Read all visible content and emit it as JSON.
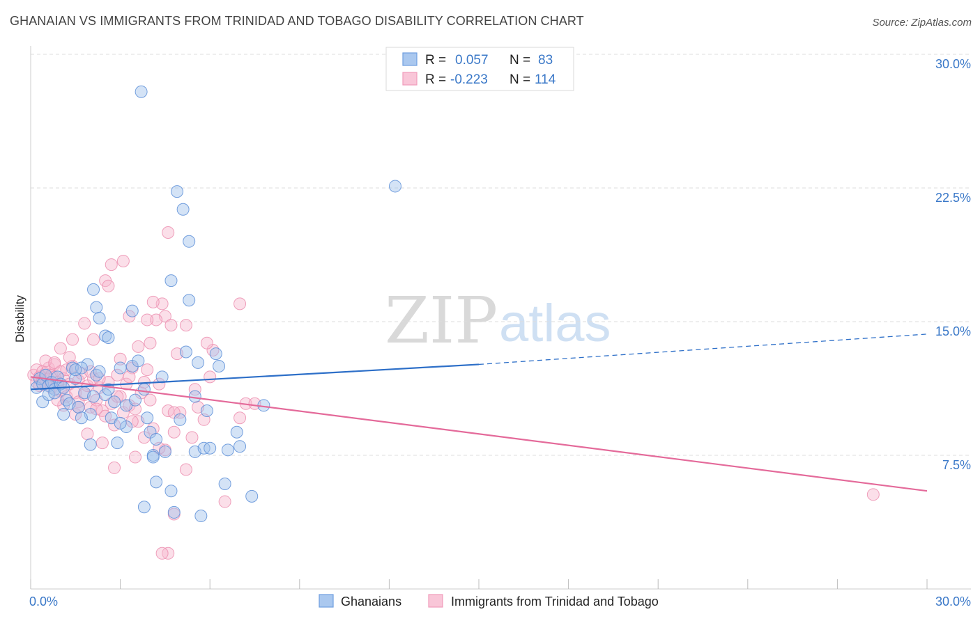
{
  "title": "GHANAIAN VS IMMIGRANTS FROM TRINIDAD AND TOBAGO DISABILITY CORRELATION CHART",
  "source": "Source: ZipAtlas.com",
  "watermark": {
    "zip": "ZIP",
    "atlas": "atlas"
  },
  "legend_top": {
    "rows": [
      {
        "r_label": "R =",
        "r_value": "0.057",
        "n_label": "N =",
        "n_value": "83",
        "color": "#6f9ee0"
      },
      {
        "r_label": "R =",
        "r_value": "-0.223",
        "n_label": "N =",
        "n_value": "114",
        "color": "#f19bbb"
      }
    ]
  },
  "legend_bottom": [
    "Ghanaians",
    "Immigrants from Trinidad and Tobago"
  ],
  "colors": {
    "blue_fill": "#9fc0ec",
    "blue_stroke": "#5d8fd8",
    "blue_line": "#2d6fc8",
    "pink_fill": "#f6b9cf",
    "pink_stroke": "#ec8fb0",
    "pink_line": "#e46a9a",
    "axis_text": "#3a78c8",
    "grid": "#dddddd"
  },
  "chart_data": {
    "type": "scatter",
    "title": "GHANAIAN VS IMMIGRANTS FROM TRINIDAD AND TOBAGO DISABILITY CORRELATION CHART",
    "xlabel": "",
    "ylabel": "Disability",
    "xlim": [
      0,
      30
    ],
    "ylim": [
      0,
      30
    ],
    "x_tick_labels": [
      "0.0%",
      "30.0%"
    ],
    "y_ticks": [
      7.5,
      15.0,
      22.5,
      30.0
    ],
    "y_tick_labels": [
      "7.5%",
      "15.0%",
      "22.5%",
      "30.0%"
    ],
    "grid": "horizontal dashed",
    "legend_placement": "top-center",
    "series": [
      {
        "name": "Ghanaians",
        "R": 0.057,
        "N": 83,
        "trend": {
          "x0": 0,
          "y0": 11.2,
          "x1": 15,
          "y1": 12.6,
          "dashed_to_x": 30,
          "dashed_to_y": 14.3
        },
        "points": [
          [
            0.2,
            11.3
          ],
          [
            0.3,
            11.8
          ],
          [
            0.4,
            11.5
          ],
          [
            0.5,
            12.0
          ],
          [
            0.6,
            11.4
          ],
          [
            0.7,
            11.6
          ],
          [
            0.8,
            11.2
          ],
          [
            0.9,
            11.9
          ],
          [
            1.0,
            11.5
          ],
          [
            0.4,
            10.5
          ],
          [
            0.6,
            10.9
          ],
          [
            0.8,
            11.0
          ],
          [
            1.1,
            11.3
          ],
          [
            1.2,
            10.6
          ],
          [
            1.3,
            10.4
          ],
          [
            1.4,
            12.4
          ],
          [
            1.5,
            11.8
          ],
          [
            1.6,
            10.2
          ],
          [
            1.1,
            9.8
          ],
          [
            1.8,
            11.0
          ],
          [
            2.0,
            9.8
          ],
          [
            2.1,
            10.8
          ],
          [
            1.9,
            12.6
          ],
          [
            2.2,
            12.0
          ],
          [
            2.3,
            12.2
          ],
          [
            2.5,
            10.9
          ],
          [
            1.7,
            12.4
          ],
          [
            1.5,
            12.3
          ],
          [
            2.6,
            11.2
          ],
          [
            2.8,
            10.5
          ],
          [
            3.0,
            12.4
          ],
          [
            3.2,
            10.3
          ],
          [
            2.7,
            9.6
          ],
          [
            3.4,
            12.5
          ],
          [
            3.5,
            10.6
          ],
          [
            2.9,
            8.2
          ],
          [
            3.2,
            9.1
          ],
          [
            3.6,
            12.8
          ],
          [
            3.8,
            11.2
          ],
          [
            3.9,
            9.6
          ],
          [
            4.0,
            8.8
          ],
          [
            4.1,
            7.5
          ],
          [
            4.2,
            6.0
          ],
          [
            3.8,
            4.6
          ],
          [
            4.5,
            7.7
          ],
          [
            4.2,
            8.4
          ],
          [
            4.4,
            11.9
          ],
          [
            4.7,
            5.5
          ],
          [
            4.8,
            4.3
          ],
          [
            5.0,
            9.5
          ],
          [
            5.2,
            13.3
          ],
          [
            5.5,
            10.8
          ],
          [
            5.6,
            12.7
          ],
          [
            5.5,
            7.7
          ],
          [
            5.8,
            7.9
          ],
          [
            5.7,
            4.1
          ],
          [
            5.9,
            10.0
          ],
          [
            6.0,
            7.9
          ],
          [
            6.3,
            12.5
          ],
          [
            6.6,
            7.8
          ],
          [
            6.5,
            5.9
          ],
          [
            6.9,
            8.8
          ],
          [
            7.0,
            8.0
          ],
          [
            7.4,
            5.2
          ],
          [
            7.8,
            10.3
          ],
          [
            6.2,
            13.2
          ],
          [
            5.1,
            21.3
          ],
          [
            5.3,
            19.5
          ],
          [
            4.9,
            22.3
          ],
          [
            3.7,
            27.9
          ],
          [
            12.2,
            22.6
          ],
          [
            2.1,
            16.8
          ],
          [
            2.2,
            15.8
          ],
          [
            2.3,
            15.2
          ],
          [
            2.5,
            14.2
          ],
          [
            2.6,
            14.1
          ],
          [
            3.4,
            15.6
          ],
          [
            4.7,
            17.3
          ],
          [
            5.3,
            16.2
          ],
          [
            4.1,
            7.4
          ],
          [
            1.7,
            9.6
          ],
          [
            2.0,
            8.1
          ],
          [
            3.0,
            9.3
          ]
        ]
      },
      {
        "name": "Immigrants from Trinidad and Tobago",
        "R": -0.223,
        "N": 114,
        "trend": {
          "x0": 0,
          "y0": 11.9,
          "x1": 30,
          "y1": 5.5
        },
        "points": [
          [
            0.1,
            12.0
          ],
          [
            0.2,
            11.6
          ],
          [
            0.2,
            12.3
          ],
          [
            0.3,
            11.9
          ],
          [
            0.3,
            11.4
          ],
          [
            0.4,
            12.2
          ],
          [
            0.4,
            11.7
          ],
          [
            0.5,
            12.1
          ],
          [
            0.5,
            11.5
          ],
          [
            0.6,
            11.8
          ],
          [
            0.6,
            12.4
          ],
          [
            0.7,
            12.0
          ],
          [
            0.7,
            11.3
          ],
          [
            0.8,
            11.9
          ],
          [
            0.8,
            12.6
          ],
          [
            0.9,
            11.6
          ],
          [
            1.0,
            12.2
          ],
          [
            1.0,
            11.1
          ],
          [
            1.1,
            11.8
          ],
          [
            1.2,
            12.3
          ],
          [
            1.2,
            10.8
          ],
          [
            1.3,
            11.5
          ],
          [
            1.4,
            12.5
          ],
          [
            1.5,
            11.0
          ],
          [
            1.6,
            11.7
          ],
          [
            1.6,
            10.5
          ],
          [
            1.7,
            12.1
          ],
          [
            1.8,
            10.9
          ],
          [
            1.9,
            11.4
          ],
          [
            2.0,
            10.2
          ],
          [
            2.1,
            11.8
          ],
          [
            2.2,
            10.6
          ],
          [
            2.3,
            11.3
          ],
          [
            2.4,
            10.0
          ],
          [
            2.5,
            9.7
          ],
          [
            2.6,
            11.6
          ],
          [
            2.7,
            10.4
          ],
          [
            2.8,
            9.2
          ],
          [
            2.9,
            12.0
          ],
          [
            3.0,
            10.8
          ],
          [
            3.1,
            9.9
          ],
          [
            3.2,
            11.5
          ],
          [
            3.3,
            10.3
          ],
          [
            3.4,
            12.4
          ],
          [
            3.5,
            10.1
          ],
          [
            3.6,
            9.4
          ],
          [
            3.7,
            11.0
          ],
          [
            3.8,
            8.5
          ],
          [
            3.9,
            12.3
          ],
          [
            4.0,
            10.6
          ],
          [
            4.1,
            9.0
          ],
          [
            4.3,
            11.5
          ],
          [
            4.5,
            7.8
          ],
          [
            4.6,
            10.0
          ],
          [
            4.8,
            8.8
          ],
          [
            5.0,
            9.9
          ],
          [
            5.2,
            6.7
          ],
          [
            5.4,
            8.5
          ],
          [
            5.6,
            10.2
          ],
          [
            5.8,
            9.5
          ],
          [
            6.1,
            13.4
          ],
          [
            6.5,
            4.9
          ],
          [
            7.0,
            9.6
          ],
          [
            7.2,
            10.4
          ],
          [
            7.0,
            16.0
          ],
          [
            5.2,
            14.8
          ],
          [
            4.9,
            13.2
          ],
          [
            4.5,
            15.3
          ],
          [
            4.2,
            15.1
          ],
          [
            3.9,
            15.1
          ],
          [
            4.4,
            16.0
          ],
          [
            4.1,
            16.1
          ],
          [
            3.6,
            13.6
          ],
          [
            3.3,
            15.3
          ],
          [
            2.7,
            18.2
          ],
          [
            2.5,
            17.3
          ],
          [
            2.6,
            17.0
          ],
          [
            2.1,
            14.0
          ],
          [
            1.8,
            14.9
          ],
          [
            1.4,
            14.0
          ],
          [
            1.0,
            13.5
          ],
          [
            0.5,
            12.8
          ],
          [
            0.8,
            12.7
          ],
          [
            3.1,
            18.4
          ],
          [
            4.6,
            20.0
          ],
          [
            4.7,
            14.8
          ],
          [
            3.8,
            11.6
          ],
          [
            2.3,
            11.8
          ],
          [
            1.3,
            13.0
          ],
          [
            2.0,
            12.2
          ],
          [
            1.1,
            10.3
          ],
          [
            2.8,
            6.8
          ],
          [
            4.0,
            13.8
          ],
          [
            4.8,
            9.9
          ],
          [
            5.9,
            13.8
          ],
          [
            5.5,
            11.2
          ],
          [
            6.0,
            11.9
          ],
          [
            2.4,
            8.2
          ],
          [
            3.5,
            7.4
          ],
          [
            4.3,
            7.9
          ],
          [
            4.8,
            4.2
          ],
          [
            4.6,
            2.0
          ],
          [
            4.4,
            2.0
          ],
          [
            3.4,
            9.4
          ],
          [
            1.5,
            9.8
          ],
          [
            2.9,
            10.8
          ],
          [
            1.9,
            8.7
          ],
          [
            2.2,
            10.1
          ],
          [
            0.9,
            10.6
          ],
          [
            1.6,
            10.2
          ],
          [
            3.0,
            12.9
          ],
          [
            3.3,
            11.9
          ],
          [
            28.2,
            5.3
          ],
          [
            7.5,
            10.4
          ]
        ]
      }
    ]
  }
}
